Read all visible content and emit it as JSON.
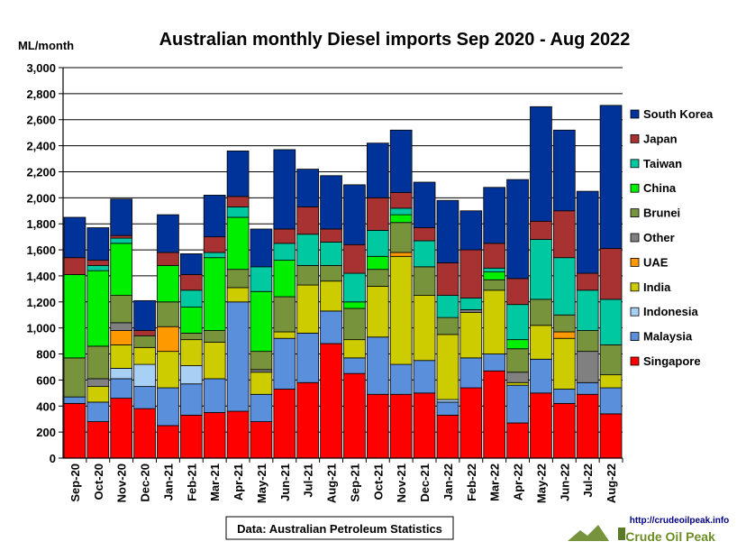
{
  "chart_data": {
    "type": "bar",
    "stacked": true,
    "title": "Australian monthly Diesel imports Sep 2020 - Aug 2022",
    "ylabel": "ML/month",
    "xlabel": "",
    "ylim": [
      0,
      3000
    ],
    "yticks": [
      0,
      200,
      400,
      600,
      800,
      1000,
      1200,
      1400,
      1600,
      1800,
      2000,
      2200,
      2400,
      2600,
      2800,
      3000
    ],
    "ytick_labels": [
      "0",
      "200",
      "400",
      "600",
      "800",
      "1,000",
      "1,200",
      "1,400",
      "1,600",
      "1,800",
      "2,000",
      "2,200",
      "2,400",
      "2,600",
      "2,800",
      "3,000"
    ],
    "grid": true,
    "legend_position": "right",
    "source_note": "Data: Australian Petroleum Statistics",
    "logo": {
      "url_text": "http://crudeoilpeak.info",
      "brand_text": "Crude Oil Peak"
    },
    "categories": [
      "Sep-20",
      "Oct-20",
      "Nov-20",
      "Dec-20",
      "Jan-21",
      "Feb-21",
      "Mar-21",
      "Apr-21",
      "May-21",
      "Jun-21",
      "Jul-21",
      "Aug-21",
      "Sep-21",
      "Oct-21",
      "Nov-21",
      "Dec-21",
      "Jan-22",
      "Feb-22",
      "Mar-22",
      "Apr-22",
      "May-22",
      "Jun-22",
      "Jul-22",
      "Aug-22"
    ],
    "series": [
      {
        "name": "Singapore",
        "color": "#ff0000",
        "values": [
          420,
          280,
          460,
          380,
          250,
          330,
          350,
          360,
          280,
          530,
          580,
          880,
          650,
          490,
          490,
          500,
          330,
          540,
          670,
          270,
          500,
          420,
          490,
          340
        ]
      },
      {
        "name": "Malaysia",
        "color": "#5a8fdb",
        "values": [
          50,
          150,
          150,
          170,
          290,
          240,
          260,
          840,
          210,
          390,
          380,
          250,
          120,
          440,
          230,
          250,
          100,
          230,
          130,
          290,
          260,
          110,
          90,
          200
        ]
      },
      {
        "name": "Indonesia",
        "color": "#a8d0f5",
        "values": [
          0,
          0,
          80,
          170,
          0,
          140,
          0,
          0,
          0,
          0,
          0,
          0,
          0,
          0,
          0,
          0,
          20,
          0,
          0,
          0,
          0,
          0,
          0,
          0
        ]
      },
      {
        "name": "India",
        "color": "#cccc00",
        "values": [
          0,
          120,
          180,
          130,
          280,
          200,
          280,
          110,
          170,
          50,
          370,
          230,
          140,
          390,
          830,
          500,
          500,
          350,
          490,
          20,
          260,
          390,
          0,
          100
        ]
      },
      {
        "name": "UAE",
        "color": "#ff9900",
        "values": [
          0,
          0,
          110,
          0,
          190,
          0,
          0,
          0,
          0,
          0,
          0,
          0,
          0,
          0,
          30,
          0,
          0,
          0,
          0,
          0,
          0,
          50,
          0,
          0
        ]
      },
      {
        "name": "Other",
        "color": "#808080",
        "values": [
          0,
          60,
          60,
          0,
          0,
          0,
          0,
          0,
          20,
          0,
          0,
          0,
          0,
          0,
          0,
          0,
          0,
          20,
          0,
          80,
          0,
          0,
          240,
          0
        ]
      },
      {
        "name": "Brunei",
        "color": "#77933c",
        "values": [
          300,
          250,
          210,
          90,
          190,
          50,
          90,
          140,
          140,
          270,
          150,
          120,
          240,
          130,
          230,
          220,
          130,
          0,
          80,
          180,
          200,
          130,
          160,
          230
        ]
      },
      {
        "name": "China",
        "color": "#00ee00",
        "values": [
          640,
          580,
          400,
          0,
          280,
          200,
          560,
          400,
          460,
          280,
          0,
          0,
          50,
          100,
          60,
          0,
          0,
          0,
          60,
          70,
          0,
          0,
          0,
          0
        ]
      },
      {
        "name": "Taiwan",
        "color": "#00c8a0",
        "values": [
          0,
          40,
          40,
          0,
          0,
          130,
          40,
          80,
          190,
          130,
          240,
          180,
          220,
          200,
          50,
          200,
          170,
          90,
          30,
          270,
          460,
          440,
          310,
          350
        ]
      },
      {
        "name": "Japan",
        "color": "#a83232",
        "values": [
          130,
          40,
          20,
          40,
          100,
          120,
          120,
          80,
          0,
          110,
          210,
          100,
          220,
          250,
          120,
          100,
          250,
          370,
          190,
          200,
          140,
          360,
          130,
          390
        ]
      },
      {
        "name": "South Korea",
        "color": "#003399",
        "values": [
          310,
          250,
          280,
          230,
          290,
          160,
          320,
          350,
          290,
          610,
          290,
          410,
          460,
          420,
          480,
          350,
          480,
          300,
          430,
          760,
          880,
          620,
          630,
          1100
        ]
      }
    ],
    "legend_order": [
      "South Korea",
      "Japan",
      "Taiwan",
      "China",
      "Brunei",
      "Other",
      "UAE",
      "India",
      "Indonesia",
      "Malaysia",
      "Singapore"
    ]
  }
}
